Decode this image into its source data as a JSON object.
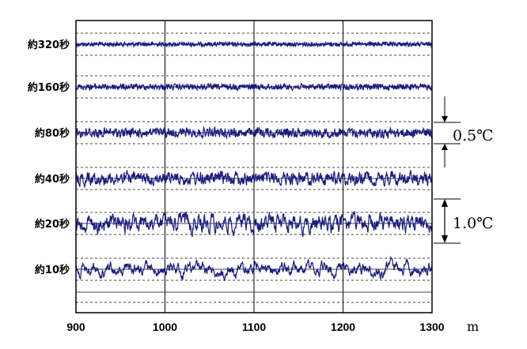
{
  "chart_data": {
    "type": "line",
    "x_unit": "m",
    "xlim": [
      900,
      1300
    ],
    "x_ticks": [
      "900",
      "1000",
      "1100",
      "1200",
      "1300"
    ],
    "line_color": "#1a1a80",
    "grid": true,
    "series": [
      {
        "name": "約320秒",
        "amplitude": 0.05
      },
      {
        "name": "約160秒",
        "amplitude": 0.08
      },
      {
        "name": "約80秒",
        "amplitude": 0.15
      },
      {
        "name": "約40秒",
        "amplitude": 0.25
      },
      {
        "name": "約20秒",
        "amplitude": 0.45
      },
      {
        "name": "約10秒",
        "amplitude": 0.6
      }
    ],
    "scale_bars": [
      {
        "label": "0.5℃"
      },
      {
        "label": "1.0℃"
      }
    ]
  }
}
